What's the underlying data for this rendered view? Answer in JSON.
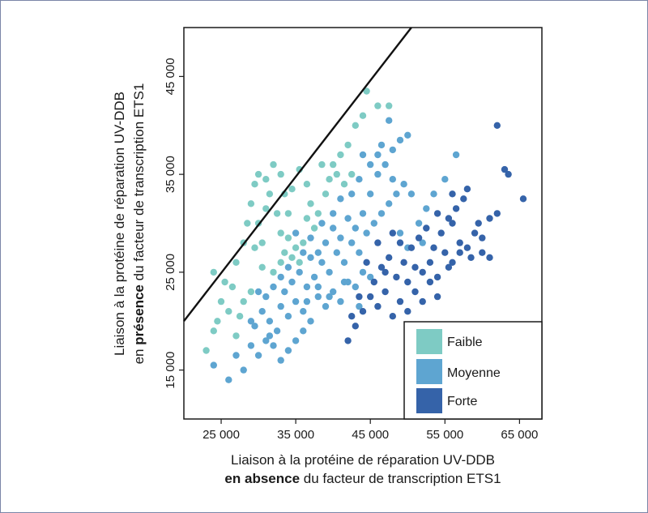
{
  "chart_data": {
    "type": "scatter",
    "xlim": [
      20000,
      68000
    ],
    "ylim": [
      10000,
      50000
    ],
    "x_ticks": [
      25000,
      35000,
      45000,
      55000,
      65000
    ],
    "y_ticks": [
      15000,
      25000,
      35000,
      45000
    ],
    "x_tick_labels": [
      "25 000",
      "35 000",
      "45 000",
      "55 000",
      "65 000"
    ],
    "y_tick_labels": [
      "15 000",
      "25 000",
      "35 000",
      "45 000"
    ],
    "xlabel_line1": "Liaison à la protéine de réparation UV-DDB",
    "xlabel_line2_bold": "en absence",
    "xlabel_line2_rest": " du facteur de transcription ETS1",
    "ylabel_line1": "Liaison à la protéine de réparation UV-DDB",
    "ylabel_line2_pre": "en ",
    "ylabel_line2_bold": "présence",
    "ylabel_line2_rest": " du facteur de transcription ETS1",
    "reference_line": {
      "x": [
        20000,
        50500
      ],
      "y": [
        20000,
        50000
      ]
    },
    "grid": false,
    "legend_position": "bottom-right",
    "series": [
      {
        "name": "Faible",
        "color": "#7ecbc4",
        "points": [
          [
            23000,
            17000
          ],
          [
            24000,
            19000
          ],
          [
            24500,
            20000
          ],
          [
            25000,
            22000
          ],
          [
            26000,
            21000
          ],
          [
            24000,
            25000
          ],
          [
            25500,
            24000
          ],
          [
            26500,
            23500
          ],
          [
            27000,
            26000
          ],
          [
            28000,
            28000
          ],
          [
            28500,
            30000
          ],
          [
            29000,
            32000
          ],
          [
            29500,
            34000
          ],
          [
            30000,
            35000
          ],
          [
            31000,
            34500
          ],
          [
            32000,
            36000
          ],
          [
            31500,
            33000
          ],
          [
            32500,
            31000
          ],
          [
            33000,
            29000
          ],
          [
            33500,
            27000
          ],
          [
            34000,
            28500
          ],
          [
            35000,
            27500
          ],
          [
            36000,
            28000
          ],
          [
            34500,
            26500
          ],
          [
            35500,
            26000
          ],
          [
            33000,
            26000
          ],
          [
            32000,
            25000
          ],
          [
            30500,
            25500
          ],
          [
            29500,
            27500
          ],
          [
            28000,
            22000
          ],
          [
            27500,
            20500
          ],
          [
            30000,
            30000
          ],
          [
            31000,
            31500
          ],
          [
            33500,
            33000
          ],
          [
            34500,
            33500
          ],
          [
            35500,
            35500
          ],
          [
            36500,
            34000
          ],
          [
            37000,
            32000
          ],
          [
            38000,
            31000
          ],
          [
            37500,
            29500
          ],
          [
            36500,
            30500
          ],
          [
            39000,
            33000
          ],
          [
            40000,
            36000
          ],
          [
            41000,
            37000
          ],
          [
            40500,
            35000
          ],
          [
            42000,
            38000
          ],
          [
            43000,
            40000
          ],
          [
            44000,
            41000
          ],
          [
            44500,
            43500
          ],
          [
            46000,
            42000
          ],
          [
            47500,
            42000
          ],
          [
            42500,
            35000
          ],
          [
            41500,
            34000
          ],
          [
            38500,
            36000
          ],
          [
            39500,
            34500
          ],
          [
            34000,
            31000
          ],
          [
            33000,
            35000
          ],
          [
            30500,
            28000
          ],
          [
            29000,
            23000
          ],
          [
            27000,
            18500
          ]
        ]
      },
      {
        "name": "Moyenne",
        "color": "#5ea5d1",
        "points": [
          [
            24000,
            15500
          ],
          [
            26000,
            14000
          ],
          [
            27000,
            16500
          ],
          [
            28000,
            15000
          ],
          [
            29000,
            17500
          ],
          [
            30000,
            16500
          ],
          [
            31000,
            18000
          ],
          [
            29500,
            19500
          ],
          [
            30500,
            21000
          ],
          [
            31500,
            20000
          ],
          [
            32500,
            19000
          ],
          [
            33000,
            21500
          ],
          [
            34000,
            20500
          ],
          [
            35000,
            22000
          ],
          [
            36000,
            21000
          ],
          [
            37000,
            20000
          ],
          [
            38000,
            22500
          ],
          [
            39000,
            21500
          ],
          [
            40000,
            23000
          ],
          [
            41000,
            22000
          ],
          [
            42000,
            24000
          ],
          [
            43000,
            23500
          ],
          [
            44000,
            25000
          ],
          [
            45000,
            24500
          ],
          [
            33500,
            23000
          ],
          [
            34500,
            24000
          ],
          [
            35500,
            25000
          ],
          [
            36500,
            23500
          ],
          [
            37500,
            24500
          ],
          [
            38500,
            26000
          ],
          [
            39500,
            25000
          ],
          [
            40500,
            27000
          ],
          [
            41500,
            26000
          ],
          [
            42500,
            28000
          ],
          [
            43500,
            27000
          ],
          [
            44500,
            29000
          ],
          [
            45500,
            30000
          ],
          [
            46500,
            31000
          ],
          [
            47500,
            32000
          ],
          [
            48500,
            33000
          ],
          [
            49500,
            34000
          ],
          [
            46000,
            35000
          ],
          [
            47000,
            36000
          ],
          [
            48000,
            37500
          ],
          [
            49000,
            38500
          ],
          [
            50000,
            39000
          ],
          [
            47500,
            40500
          ],
          [
            46000,
            37000
          ],
          [
            45000,
            33000
          ],
          [
            44000,
            31000
          ],
          [
            43000,
            29500
          ],
          [
            42000,
            30500
          ],
          [
            41000,
            28500
          ],
          [
            40000,
            29500
          ],
          [
            39000,
            28000
          ],
          [
            38000,
            27000
          ],
          [
            37000,
            26500
          ],
          [
            36000,
            19000
          ],
          [
            35000,
            18000
          ],
          [
            34000,
            17000
          ],
          [
            33000,
            16000
          ],
          [
            32000,
            17500
          ],
          [
            31000,
            22500
          ],
          [
            30000,
            23000
          ],
          [
            32000,
            23500
          ],
          [
            33000,
            24500
          ],
          [
            34000,
            25500
          ],
          [
            36000,
            27000
          ],
          [
            35000,
            29000
          ],
          [
            37000,
            28500
          ],
          [
            38500,
            30000
          ],
          [
            40000,
            31000
          ],
          [
            41000,
            32500
          ],
          [
            42500,
            33000
          ],
          [
            43500,
            34500
          ],
          [
            45000,
            36000
          ],
          [
            44000,
            37000
          ],
          [
            46500,
            38000
          ],
          [
            48000,
            34500
          ],
          [
            50500,
            33000
          ],
          [
            51500,
            30000
          ],
          [
            52500,
            31500
          ],
          [
            53500,
            33000
          ],
          [
            55000,
            34500
          ],
          [
            56500,
            37000
          ],
          [
            52000,
            28000
          ],
          [
            50000,
            27500
          ],
          [
            49000,
            29000
          ],
          [
            29000,
            20000
          ],
          [
            31500,
            18500
          ],
          [
            36500,
            22000
          ],
          [
            38000,
            23500
          ],
          [
            39500,
            22500
          ],
          [
            41500,
            24000
          ],
          [
            43500,
            21500
          ]
        ]
      },
      {
        "name": "Forte",
        "color": "#3563a9",
        "points": [
          [
            42000,
            18000
          ],
          [
            43000,
            19500
          ],
          [
            44000,
            21000
          ],
          [
            45000,
            22500
          ],
          [
            46000,
            21500
          ],
          [
            47000,
            23000
          ],
          [
            48000,
            20500
          ],
          [
            49000,
            22000
          ],
          [
            50000,
            24000
          ],
          [
            51000,
            23000
          ],
          [
            52000,
            25000
          ],
          [
            53000,
            26000
          ],
          [
            54000,
            24500
          ],
          [
            55000,
            27000
          ],
          [
            56000,
            26000
          ],
          [
            57000,
            28000
          ],
          [
            58000,
            27500
          ],
          [
            59000,
            29000
          ],
          [
            60000,
            28500
          ],
          [
            45500,
            24000
          ],
          [
            46500,
            25500
          ],
          [
            47500,
            26500
          ],
          [
            48500,
            24500
          ],
          [
            49500,
            26000
          ],
          [
            50500,
            27500
          ],
          [
            51500,
            28500
          ],
          [
            52500,
            29500
          ],
          [
            53500,
            27500
          ],
          [
            54500,
            29000
          ],
          [
            55500,
            30500
          ],
          [
            56500,
            31500
          ],
          [
            57500,
            32500
          ],
          [
            58000,
            33500
          ],
          [
            59500,
            30000
          ],
          [
            61000,
            30500
          ],
          [
            62000,
            31000
          ],
          [
            63000,
            35500
          ],
          [
            63500,
            35000
          ],
          [
            65500,
            32500
          ],
          [
            62000,
            40000
          ],
          [
            56000,
            33000
          ],
          [
            54000,
            31000
          ],
          [
            51000,
            25500
          ],
          [
            50000,
            21000
          ],
          [
            52000,
            22000
          ],
          [
            53000,
            24000
          ],
          [
            47000,
            25000
          ],
          [
            49000,
            28000
          ],
          [
            48000,
            29000
          ],
          [
            46000,
            28000
          ],
          [
            44500,
            26000
          ],
          [
            43500,
            22500
          ],
          [
            42500,
            20500
          ],
          [
            58500,
            26500
          ],
          [
            57000,
            27000
          ],
          [
            55500,
            25500
          ],
          [
            54000,
            22500
          ],
          [
            56000,
            30000
          ],
          [
            60000,
            27000
          ],
          [
            61000,
            26500
          ]
        ]
      }
    ]
  }
}
